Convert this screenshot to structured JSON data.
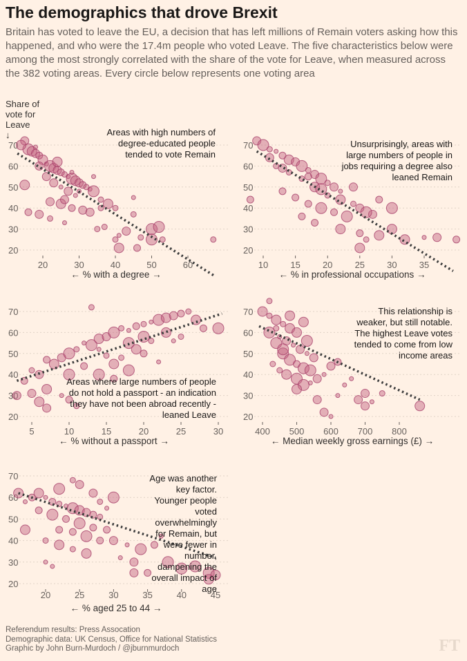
{
  "header": {
    "title": "The demographics that drove Brexit",
    "subtitle": "Britain has voted to leave the EU, a decision that has left millions of Remain voters asking how this happened, and who were the 17.4m people who voted Leave. The five characteristics below were among the most strongly correlated with the share of the vote for Leave, when measured across the 382 voting areas. Every circle below represents one voting area"
  },
  "y_axis_label": "Share of vote for Leave",
  "y_axis_arrow": "↓",
  "colors": {
    "background": "#fff1e5",
    "dot_fill": "#c0607f",
    "dot_stroke": "#a8406a",
    "trend": "#3d3d3d",
    "grid": "#e0d3c6"
  },
  "chart_data": [
    {
      "type": "scatter",
      "xlabel": "← % with a degree →",
      "annotation": "Areas with high numbers of degree-educated people tended to vote Remain",
      "x_ticks": [
        20,
        30,
        40,
        50,
        60
      ],
      "y_ticks": [
        20,
        30,
        40,
        50,
        60,
        70
      ],
      "grid": "horizontal dotted",
      "trend_line": [
        [
          13,
          66
        ],
        [
          67.5,
          7.5
        ]
      ],
      "points": [
        [
          15,
          72
        ],
        [
          16,
          68
        ],
        [
          17,
          67
        ],
        [
          18,
          66
        ],
        [
          19,
          65
        ],
        [
          20,
          63
        ],
        [
          21,
          61
        ],
        [
          22,
          60
        ],
        [
          23,
          59
        ],
        [
          24,
          58
        ],
        [
          25,
          57
        ],
        [
          26,
          56
        ],
        [
          27,
          55
        ],
        [
          28,
          54
        ],
        [
          29,
          53
        ],
        [
          30,
          52
        ],
        [
          31,
          51
        ],
        [
          32,
          50
        ],
        [
          33,
          49
        ],
        [
          34,
          48
        ],
        [
          19,
          60
        ],
        [
          21,
          55
        ],
        [
          23,
          52
        ],
        [
          25,
          50
        ],
        [
          27,
          48
        ],
        [
          29,
          46
        ],
        [
          22,
          43
        ],
        [
          25,
          42
        ],
        [
          28,
          40
        ],
        [
          31,
          39
        ],
        [
          33,
          38
        ],
        [
          36,
          44
        ],
        [
          38,
          42
        ],
        [
          40,
          40
        ],
        [
          16,
          38
        ],
        [
          19,
          37
        ],
        [
          22,
          35
        ],
        [
          26,
          33
        ],
        [
          35,
          30
        ],
        [
          37,
          31
        ],
        [
          41,
          27
        ],
        [
          43,
          29
        ],
        [
          40,
          25
        ],
        [
          45,
          37
        ],
        [
          47,
          26
        ],
        [
          50,
          30
        ],
        [
          52,
          31
        ],
        [
          53,
          25
        ],
        [
          50,
          25
        ],
        [
          46,
          21
        ],
        [
          41,
          21
        ],
        [
          67,
          25
        ],
        [
          15,
          51
        ],
        [
          34,
          55
        ],
        [
          45,
          45
        ],
        [
          36,
          40
        ],
        [
          14,
          70
        ],
        [
          18,
          69
        ],
        [
          24,
          62
        ],
        [
          28,
          57
        ],
        [
          30,
          48
        ],
        [
          26,
          44
        ]
      ]
    },
    {
      "type": "scatter",
      "xlabel": "← % in professional occupations →",
      "annotation": "Unsurprisingly, areas with large numbers of people in jobs requiring a degree also leaned Remain",
      "x_ticks": [
        10,
        15,
        20,
        25,
        30,
        35
      ],
      "y_ticks": [
        20,
        30,
        40,
        50,
        60,
        70
      ],
      "grid": "horizontal dotted",
      "trend_line": [
        [
          9,
          67
        ],
        [
          39.5,
          10
        ]
      ],
      "points": [
        [
          9,
          72
        ],
        [
          10,
          70
        ],
        [
          11,
          68
        ],
        [
          12,
          67
        ],
        [
          13,
          65
        ],
        [
          14,
          63
        ],
        [
          15,
          62
        ],
        [
          16,
          60
        ],
        [
          17,
          58
        ],
        [
          18,
          56
        ],
        [
          19,
          54
        ],
        [
          20,
          52
        ],
        [
          21,
          50
        ],
        [
          12,
          60
        ],
        [
          14,
          57
        ],
        [
          16,
          54
        ],
        [
          18,
          50
        ],
        [
          20,
          46
        ],
        [
          22,
          44
        ],
        [
          13,
          48
        ],
        [
          15,
          45
        ],
        [
          17,
          42
        ],
        [
          19,
          40
        ],
        [
          21,
          38
        ],
        [
          23,
          36
        ],
        [
          24,
          42
        ],
        [
          25,
          40
        ],
        [
          27,
          37
        ],
        [
          16,
          36
        ],
        [
          18,
          33
        ],
        [
          22,
          30
        ],
        [
          25,
          28
        ],
        [
          26,
          25
        ],
        [
          28,
          27
        ],
        [
          30,
          30
        ],
        [
          32,
          25
        ],
        [
          25,
          21
        ],
        [
          35,
          26
        ],
        [
          37,
          26
        ],
        [
          26,
          38
        ],
        [
          28,
          44
        ],
        [
          30,
          40
        ],
        [
          8,
          44
        ],
        [
          40,
          25
        ],
        [
          22,
          48
        ],
        [
          24,
          50
        ],
        [
          11,
          64
        ],
        [
          13,
          59
        ],
        [
          17,
          55
        ],
        [
          19,
          49
        ]
      ]
    },
    {
      "type": "scatter",
      "xlabel": "← % without a passport →",
      "annotation": "Areas where large numbers of people do not hold a passport - an indication they have not been abroad recently - leaned Leave",
      "x_ticks": [
        5,
        10,
        15,
        20,
        25,
        30
      ],
      "y_ticks": [
        20,
        30,
        40,
        50,
        60,
        70
      ],
      "grid": "horizontal dotted",
      "trend_line": [
        [
          3,
          37
        ],
        [
          30.5,
          69
        ]
      ],
      "points": [
        [
          3,
          30
        ],
        [
          4,
          37
        ],
        [
          5,
          42
        ],
        [
          6,
          40
        ],
        [
          7,
          47
        ],
        [
          8,
          45
        ],
        [
          9,
          48
        ],
        [
          10,
          50
        ],
        [
          11,
          52
        ],
        [
          12,
          55
        ],
        [
          13,
          54
        ],
        [
          14,
          57
        ],
        [
          15,
          58
        ],
        [
          16,
          60
        ],
        [
          17,
          62
        ],
        [
          18,
          61
        ],
        [
          19,
          63
        ],
        [
          20,
          64
        ],
        [
          21,
          65
        ],
        [
          22,
          66
        ],
        [
          23,
          67
        ],
        [
          24,
          68
        ],
        [
          25,
          69
        ],
        [
          26,
          70
        ],
        [
          13,
          72
        ],
        [
          15,
          49
        ],
        [
          17,
          48
        ],
        [
          19,
          52
        ],
        [
          21,
          56
        ],
        [
          23,
          60
        ],
        [
          25,
          58
        ],
        [
          27,
          66
        ],
        [
          12,
          44
        ],
        [
          14,
          40
        ],
        [
          16,
          38
        ],
        [
          18,
          42
        ],
        [
          20,
          50
        ],
        [
          6,
          27
        ],
        [
          7,
          24
        ],
        [
          9,
          30
        ],
        [
          10,
          28
        ],
        [
          11,
          25
        ],
        [
          7,
          33
        ],
        [
          5,
          31
        ],
        [
          22,
          46
        ],
        [
          16,
          45
        ],
        [
          28,
          62
        ],
        [
          30,
          62
        ],
        [
          24,
          56
        ],
        [
          10,
          40
        ],
        [
          18,
          55
        ],
        [
          20,
          58
        ],
        [
          14,
          52
        ]
      ]
    },
    {
      "type": "scatter",
      "xlabel": "← Median weekly gross earnings (£) →",
      "annotation": "This relationship is weaker, but still notable. The highest Leave votes tended to come from low income areas",
      "x_ticks": [
        400,
        500,
        600,
        700,
        800
      ],
      "y_ticks": [
        20,
        30,
        40,
        50,
        60,
        70
      ],
      "grid": "horizontal dotted",
      "trend_line": [
        [
          390,
          63
        ],
        [
          860,
          28
        ]
      ],
      "points": [
        [
          400,
          70
        ],
        [
          420,
          68
        ],
        [
          440,
          66
        ],
        [
          460,
          64
        ],
        [
          480,
          62
        ],
        [
          420,
          60
        ],
        [
          450,
          58
        ],
        [
          470,
          56
        ],
        [
          490,
          54
        ],
        [
          510,
          52
        ],
        [
          530,
          50
        ],
        [
          550,
          48
        ],
        [
          440,
          55
        ],
        [
          460,
          50
        ],
        [
          480,
          47
        ],
        [
          500,
          45
        ],
        [
          520,
          43
        ],
        [
          540,
          42
        ],
        [
          430,
          45
        ],
        [
          450,
          42
        ],
        [
          470,
          40
        ],
        [
          500,
          38
        ],
        [
          520,
          35
        ],
        [
          500,
          33
        ],
        [
          540,
          36
        ],
        [
          560,
          38
        ],
        [
          580,
          40
        ],
        [
          600,
          44
        ],
        [
          620,
          30
        ],
        [
          640,
          35
        ],
        [
          660,
          38
        ],
        [
          680,
          28
        ],
        [
          700,
          25
        ],
        [
          720,
          27
        ],
        [
          750,
          31
        ],
        [
          580,
          22
        ],
        [
          600,
          20
        ],
        [
          560,
          28
        ],
        [
          500,
          60
        ],
        [
          520,
          65
        ],
        [
          420,
          75
        ],
        [
          860,
          25
        ],
        [
          620,
          46
        ],
        [
          460,
          52
        ],
        [
          700,
          31
        ],
        [
          530,
          56
        ],
        [
          480,
          68
        ],
        [
          440,
          62
        ]
      ]
    },
    {
      "type": "scatter",
      "xlabel": "← % aged 25 to 44 →",
      "annotation": "Age was another key factor. Younger people voted overwhelmingly for Remain, but were fewer in number, dampening the overall impact of age",
      "x_ticks": [
        20,
        25,
        30,
        35,
        40,
        45
      ],
      "y_ticks": [
        20,
        30,
        40,
        50,
        60,
        70
      ],
      "grid": "horizontal dotted",
      "trend_line": [
        [
          16,
          62
        ],
        [
          45,
          32
        ]
      ],
      "points": [
        [
          16,
          62
        ],
        [
          17,
          58
        ],
        [
          18,
          60
        ],
        [
          19,
          62
        ],
        [
          20,
          60
        ],
        [
          21,
          58
        ],
        [
          22,
          57
        ],
        [
          23,
          56
        ],
        [
          24,
          55
        ],
        [
          25,
          54
        ],
        [
          26,
          53
        ],
        [
          27,
          52
        ],
        [
          28,
          51
        ],
        [
          19,
          54
        ],
        [
          21,
          52
        ],
        [
          23,
          50
        ],
        [
          25,
          48
        ],
        [
          27,
          46
        ],
        [
          29,
          45
        ],
        [
          22,
          45
        ],
        [
          24,
          44
        ],
        [
          26,
          42
        ],
        [
          28,
          40
        ],
        [
          20,
          40
        ],
        [
          22,
          38
        ],
        [
          24,
          36
        ],
        [
          26,
          34
        ],
        [
          30,
          40
        ],
        [
          32,
          38
        ],
        [
          31,
          32
        ],
        [
          33,
          30
        ],
        [
          34,
          36
        ],
        [
          36,
          38
        ],
        [
          38,
          30
        ],
        [
          40,
          27
        ],
        [
          42,
          28
        ],
        [
          44,
          25
        ],
        [
          45,
          24
        ],
        [
          44,
          22
        ],
        [
          33,
          25
        ],
        [
          29,
          55
        ],
        [
          30,
          60
        ],
        [
          27,
          62
        ],
        [
          24,
          68
        ],
        [
          17,
          45
        ],
        [
          21,
          28
        ],
        [
          20,
          30
        ],
        [
          37,
          42
        ],
        [
          35,
          25
        ],
        [
          22,
          64
        ],
        [
          25,
          66
        ],
        [
          28,
          58
        ]
      ]
    }
  ],
  "footer": {
    "lines": [
      "Referendum results: Press Assocation",
      "Demographic data: UK Census, Office for National Statistics",
      "Graphic by John Burn-Murdoch / @jburnmurdoch"
    ],
    "logo": "FT"
  }
}
